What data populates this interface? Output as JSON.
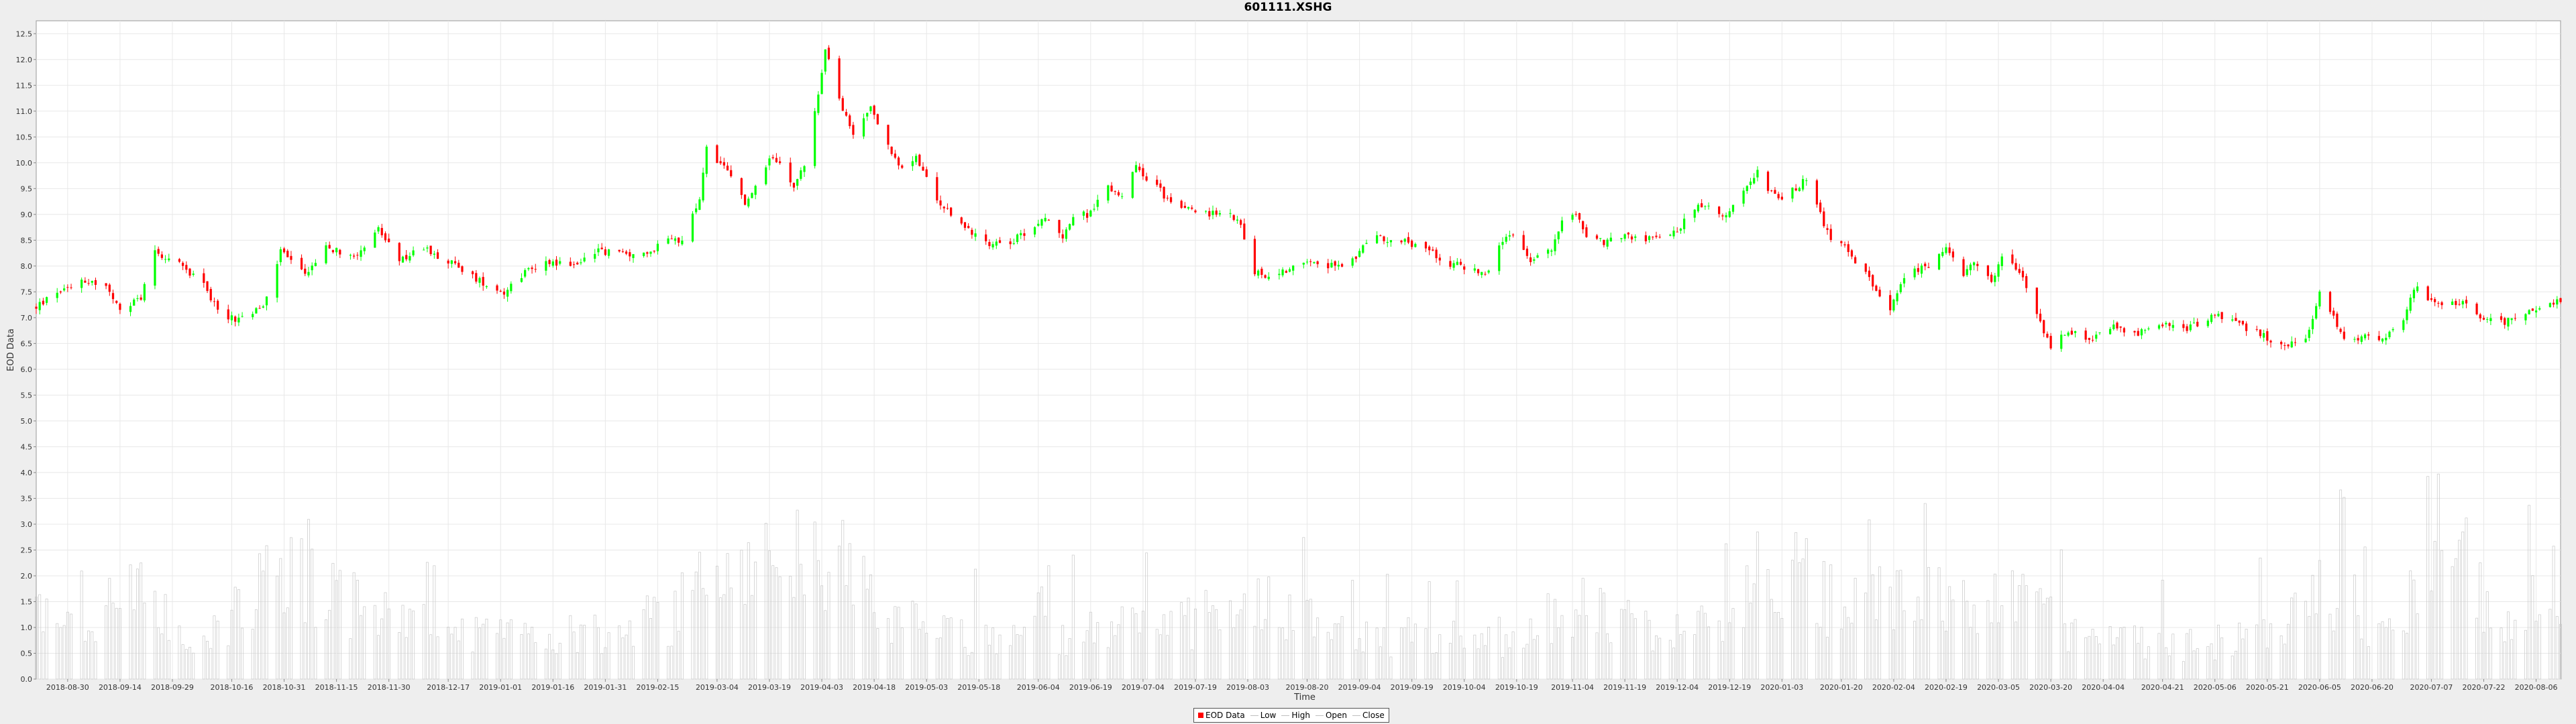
{
  "chart_data": {
    "type": "candlestick",
    "title": "601111.XSHG",
    "xlabel": "Time",
    "ylabel": "EOD Data",
    "ylim": [
      0,
      12.75
    ],
    "y_ticks": [
      0.0,
      0.5,
      1.0,
      1.5,
      2.0,
      2.5,
      3.0,
      3.5,
      4.0,
      4.5,
      5.0,
      5.5,
      6.0,
      6.5,
      7.0,
      7.5,
      8.0,
      8.5,
      9.0,
      9.5,
      10.0,
      10.5,
      11.0,
      11.5,
      12.0,
      12.5
    ],
    "x_range": [
      "2018-08-21",
      "2020-08-13"
    ],
    "x_ticks": [
      "2018-08-30",
      "2018-09-14",
      "2018-09-29",
      "2018-10-16",
      "2018-10-31",
      "2018-11-15",
      "2018-11-30",
      "2018-12-17",
      "2019-01-01",
      "2019-01-16",
      "2019-01-31",
      "2019-02-15",
      "2019-03-04",
      "2019-03-19",
      "2019-04-03",
      "2019-04-18",
      "2019-05-03",
      "2019-05-18",
      "2019-06-04",
      "2019-06-19",
      "2019-07-04",
      "2019-07-19",
      "2019-08-03",
      "2019-08-20",
      "2019-09-04",
      "2019-09-19",
      "2019-10-04",
      "2019-10-19",
      "2019-11-04",
      "2019-11-19",
      "2019-12-04",
      "2019-12-19",
      "2020-01-03",
      "2020-01-20",
      "2020-02-04",
      "2020-02-19",
      "2020-03-05",
      "2020-03-20",
      "2020-04-04",
      "2020-04-21",
      "2020-05-06",
      "2020-05-21",
      "2020-06-05",
      "2020-06-20",
      "2020-07-07",
      "2020-07-22",
      "2020-08-06"
    ],
    "grid": true,
    "legend_position": "bottom-center",
    "legend": [
      "EOD Data",
      "Low",
      "High",
      "Open",
      "Close"
    ],
    "price_path": [
      [
        "2018-08-21",
        7.2
      ],
      [
        "2018-08-27",
        7.5
      ],
      [
        "2018-09-03",
        7.75
      ],
      [
        "2018-09-10",
        7.6
      ],
      [
        "2018-09-14",
        7.1
      ],
      [
        "2018-09-20",
        7.4
      ],
      [
        "2018-09-24",
        8.3
      ],
      [
        "2018-09-28",
        8.15
      ],
      [
        "2018-10-08",
        7.7
      ],
      [
        "2018-10-12",
        7.1
      ],
      [
        "2018-10-18",
        6.95
      ],
      [
        "2018-10-25",
        7.2
      ],
      [
        "2018-10-30",
        8.3
      ],
      [
        "2018-11-06",
        7.85
      ],
      [
        "2018-11-12",
        8.35
      ],
      [
        "2018-11-20",
        8.2
      ],
      [
        "2018-11-27",
        8.7
      ],
      [
        "2018-12-03",
        8.1
      ],
      [
        "2018-12-10",
        8.35
      ],
      [
        "2018-12-17",
        8.1
      ],
      [
        "2018-12-25",
        7.75
      ],
      [
        "2019-01-02",
        7.5
      ],
      [
        "2019-01-08",
        7.9
      ],
      [
        "2019-01-15",
        8.1
      ],
      [
        "2019-01-22",
        8.0
      ],
      [
        "2019-01-28",
        8.3
      ],
      [
        "2019-02-12",
        8.2
      ],
      [
        "2019-02-18",
        8.6
      ],
      [
        "2019-02-22",
        8.45
      ],
      [
        "2019-02-27",
        9.3
      ],
      [
        "2019-03-01",
        10.3
      ],
      [
        "2019-03-05",
        9.95
      ],
      [
        "2019-03-08",
        9.75
      ],
      [
        "2019-03-12",
        9.2
      ],
      [
        "2019-03-15",
        9.5
      ],
      [
        "2019-03-20",
        10.15
      ],
      [
        "2019-03-26",
        9.5
      ],
      [
        "2019-03-29",
        10.0
      ],
      [
        "2019-04-02",
        11.3
      ],
      [
        "2019-04-04",
        12.2
      ],
      [
        "2019-04-09",
        11.0
      ],
      [
        "2019-04-12",
        10.55
      ],
      [
        "2019-04-17",
        11.1
      ],
      [
        "2019-04-22",
        10.3
      ],
      [
        "2019-04-25",
        9.9
      ],
      [
        "2019-04-30",
        10.1
      ],
      [
        "2019-05-06",
        9.25
      ],
      [
        "2019-05-10",
        9.0
      ],
      [
        "2019-05-15",
        8.7
      ],
      [
        "2019-05-21",
        8.45
      ],
      [
        "2019-05-28",
        8.5
      ],
      [
        "2019-06-03",
        8.8
      ],
      [
        "2019-06-06",
        8.9
      ],
      [
        "2019-06-11",
        8.6
      ],
      [
        "2019-06-14",
        8.95
      ],
      [
        "2019-06-18",
        9.0
      ],
      [
        "2019-06-24",
        9.5
      ],
      [
        "2019-06-28",
        9.4
      ],
      [
        "2019-07-02",
        9.9
      ],
      [
        "2019-07-08",
        9.55
      ],
      [
        "2019-07-12",
        9.2
      ],
      [
        "2019-07-19",
        9.05
      ],
      [
        "2019-07-26",
        9.0
      ],
      [
        "2019-07-31",
        8.95
      ],
      [
        "2019-08-05",
        7.9
      ],
      [
        "2019-08-09",
        7.8
      ],
      [
        "2019-08-15",
        7.95
      ],
      [
        "2019-08-21",
        8.15
      ],
      [
        "2019-08-27",
        8.0
      ],
      [
        "2019-09-03",
        8.1
      ],
      [
        "2019-09-06",
        8.5
      ],
      [
        "2019-09-11",
        8.55
      ],
      [
        "2019-09-18",
        8.45
      ],
      [
        "2019-09-24",
        8.3
      ],
      [
        "2019-09-30",
        8.05
      ],
      [
        "2019-10-11",
        7.85
      ],
      [
        "2019-10-15",
        8.5
      ],
      [
        "2019-10-18",
        8.55
      ],
      [
        "2019-10-23",
        8.1
      ],
      [
        "2019-10-29",
        8.3
      ],
      [
        "2019-11-01",
        8.95
      ],
      [
        "2019-11-05",
        9.0
      ],
      [
        "2019-11-08",
        8.6
      ],
      [
        "2019-11-13",
        8.45
      ],
      [
        "2019-11-19",
        8.6
      ],
      [
        "2019-11-25",
        8.5
      ],
      [
        "2019-11-29",
        8.6
      ],
      [
        "2019-12-04",
        8.7
      ],
      [
        "2019-12-09",
        9.15
      ],
      [
        "2019-12-13",
        9.1
      ],
      [
        "2019-12-18",
        9.0
      ],
      [
        "2019-12-23",
        9.4
      ],
      [
        "2019-12-27",
        9.8
      ],
      [
        "2020-01-02",
        9.25
      ],
      [
        "2020-01-07",
        9.5
      ],
      [
        "2020-01-10",
        9.7
      ],
      [
        "2020-01-14",
        9.0
      ],
      [
        "2020-01-17",
        8.5
      ],
      [
        "2020-01-22",
        8.3
      ],
      [
        "2020-02-03",
        7.2
      ],
      [
        "2020-02-06",
        7.7
      ],
      [
        "2020-02-11",
        7.95
      ],
      [
        "2020-02-14",
        8.0
      ],
      [
        "2020-02-19",
        8.3
      ],
      [
        "2020-02-24",
        7.8
      ],
      [
        "2020-02-27",
        8.1
      ],
      [
        "2020-03-03",
        7.7
      ],
      [
        "2020-03-06",
        8.2
      ],
      [
        "2020-03-10",
        8.0
      ],
      [
        "2020-03-13",
        7.6
      ],
      [
        "2020-03-17",
        6.9
      ],
      [
        "2020-03-20",
        6.45
      ],
      [
        "2020-03-25",
        6.75
      ],
      [
        "2020-03-31",
        6.55
      ],
      [
        "2020-04-07",
        6.8
      ],
      [
        "2020-04-14",
        6.7
      ],
      [
        "2020-04-21",
        6.85
      ],
      [
        "2020-04-28",
        6.8
      ],
      [
        "2020-05-06",
        7.05
      ],
      [
        "2020-05-13",
        6.85
      ],
      [
        "2020-05-20",
        6.65
      ],
      [
        "2020-05-26",
        6.4
      ],
      [
        "2020-06-02",
        6.7
      ],
      [
        "2020-06-05",
        7.45
      ],
      [
        "2020-06-09",
        7.0
      ],
      [
        "2020-06-12",
        6.6
      ],
      [
        "2020-06-19",
        6.65
      ],
      [
        "2020-06-24",
        6.6
      ],
      [
        "2020-06-29",
        6.9
      ],
      [
        "2020-07-02",
        7.6
      ],
      [
        "2020-07-07",
        7.35
      ],
      [
        "2020-07-13",
        7.25
      ],
      [
        "2020-07-17",
        7.3
      ],
      [
        "2020-07-22",
        6.95
      ],
      [
        "2020-07-28",
        6.9
      ],
      [
        "2020-08-03",
        7.1
      ],
      [
        "2020-08-10",
        7.3
      ],
      [
        "2020-08-13",
        7.3
      ]
    ],
    "volume_path": [
      [
        "2018-08-21",
        1.5
      ],
      [
        "2018-09-05",
        1.0
      ],
      [
        "2018-09-21",
        2.2
      ],
      [
        "2018-10-05",
        0.6
      ],
      [
        "2018-10-31",
        2.6
      ],
      [
        "2018-11-15",
        1.8
      ],
      [
        "2018-12-10",
        1.1
      ],
      [
        "2019-01-10",
        0.8
      ],
      [
        "2019-02-20",
        1.4
      ],
      [
        "2019-03-01",
        2.6
      ],
      [
        "2019-03-20",
        2.2
      ],
      [
        "2019-04-04",
        2.9
      ],
      [
        "2019-04-18",
        1.5
      ],
      [
        "2019-05-10",
        0.9
      ],
      [
        "2019-06-18",
        1.0
      ],
      [
        "2019-07-10",
        1.1
      ],
      [
        "2019-08-05",
        1.5
      ],
      [
        "2019-09-05",
        0.9
      ],
      [
        "2019-10-15",
        0.9
      ],
      [
        "2019-11-04",
        1.5
      ],
      [
        "2019-12-10",
        1.0
      ],
      [
        "2020-01-03",
        2.6
      ],
      [
        "2020-01-20",
        1.5
      ],
      [
        "2020-02-04",
        1.7
      ],
      [
        "2020-02-24",
        1.6
      ],
      [
        "2020-03-10",
        1.6
      ],
      [
        "2020-03-25",
        1.0
      ],
      [
        "2020-04-21",
        0.7
      ],
      [
        "2020-05-25",
        0.9
      ],
      [
        "2020-06-05",
        2.3
      ],
      [
        "2020-06-25",
        0.9
      ],
      [
        "2020-07-08",
        2.9
      ],
      [
        "2020-07-25",
        1.4
      ],
      [
        "2020-08-13",
        2.0
      ]
    ]
  },
  "colors": {
    "up": "#00ff00",
    "down": "#ff0000",
    "volume": "#c8c8c8",
    "grid": "#e8e8e8",
    "background": "#ffffff"
  }
}
